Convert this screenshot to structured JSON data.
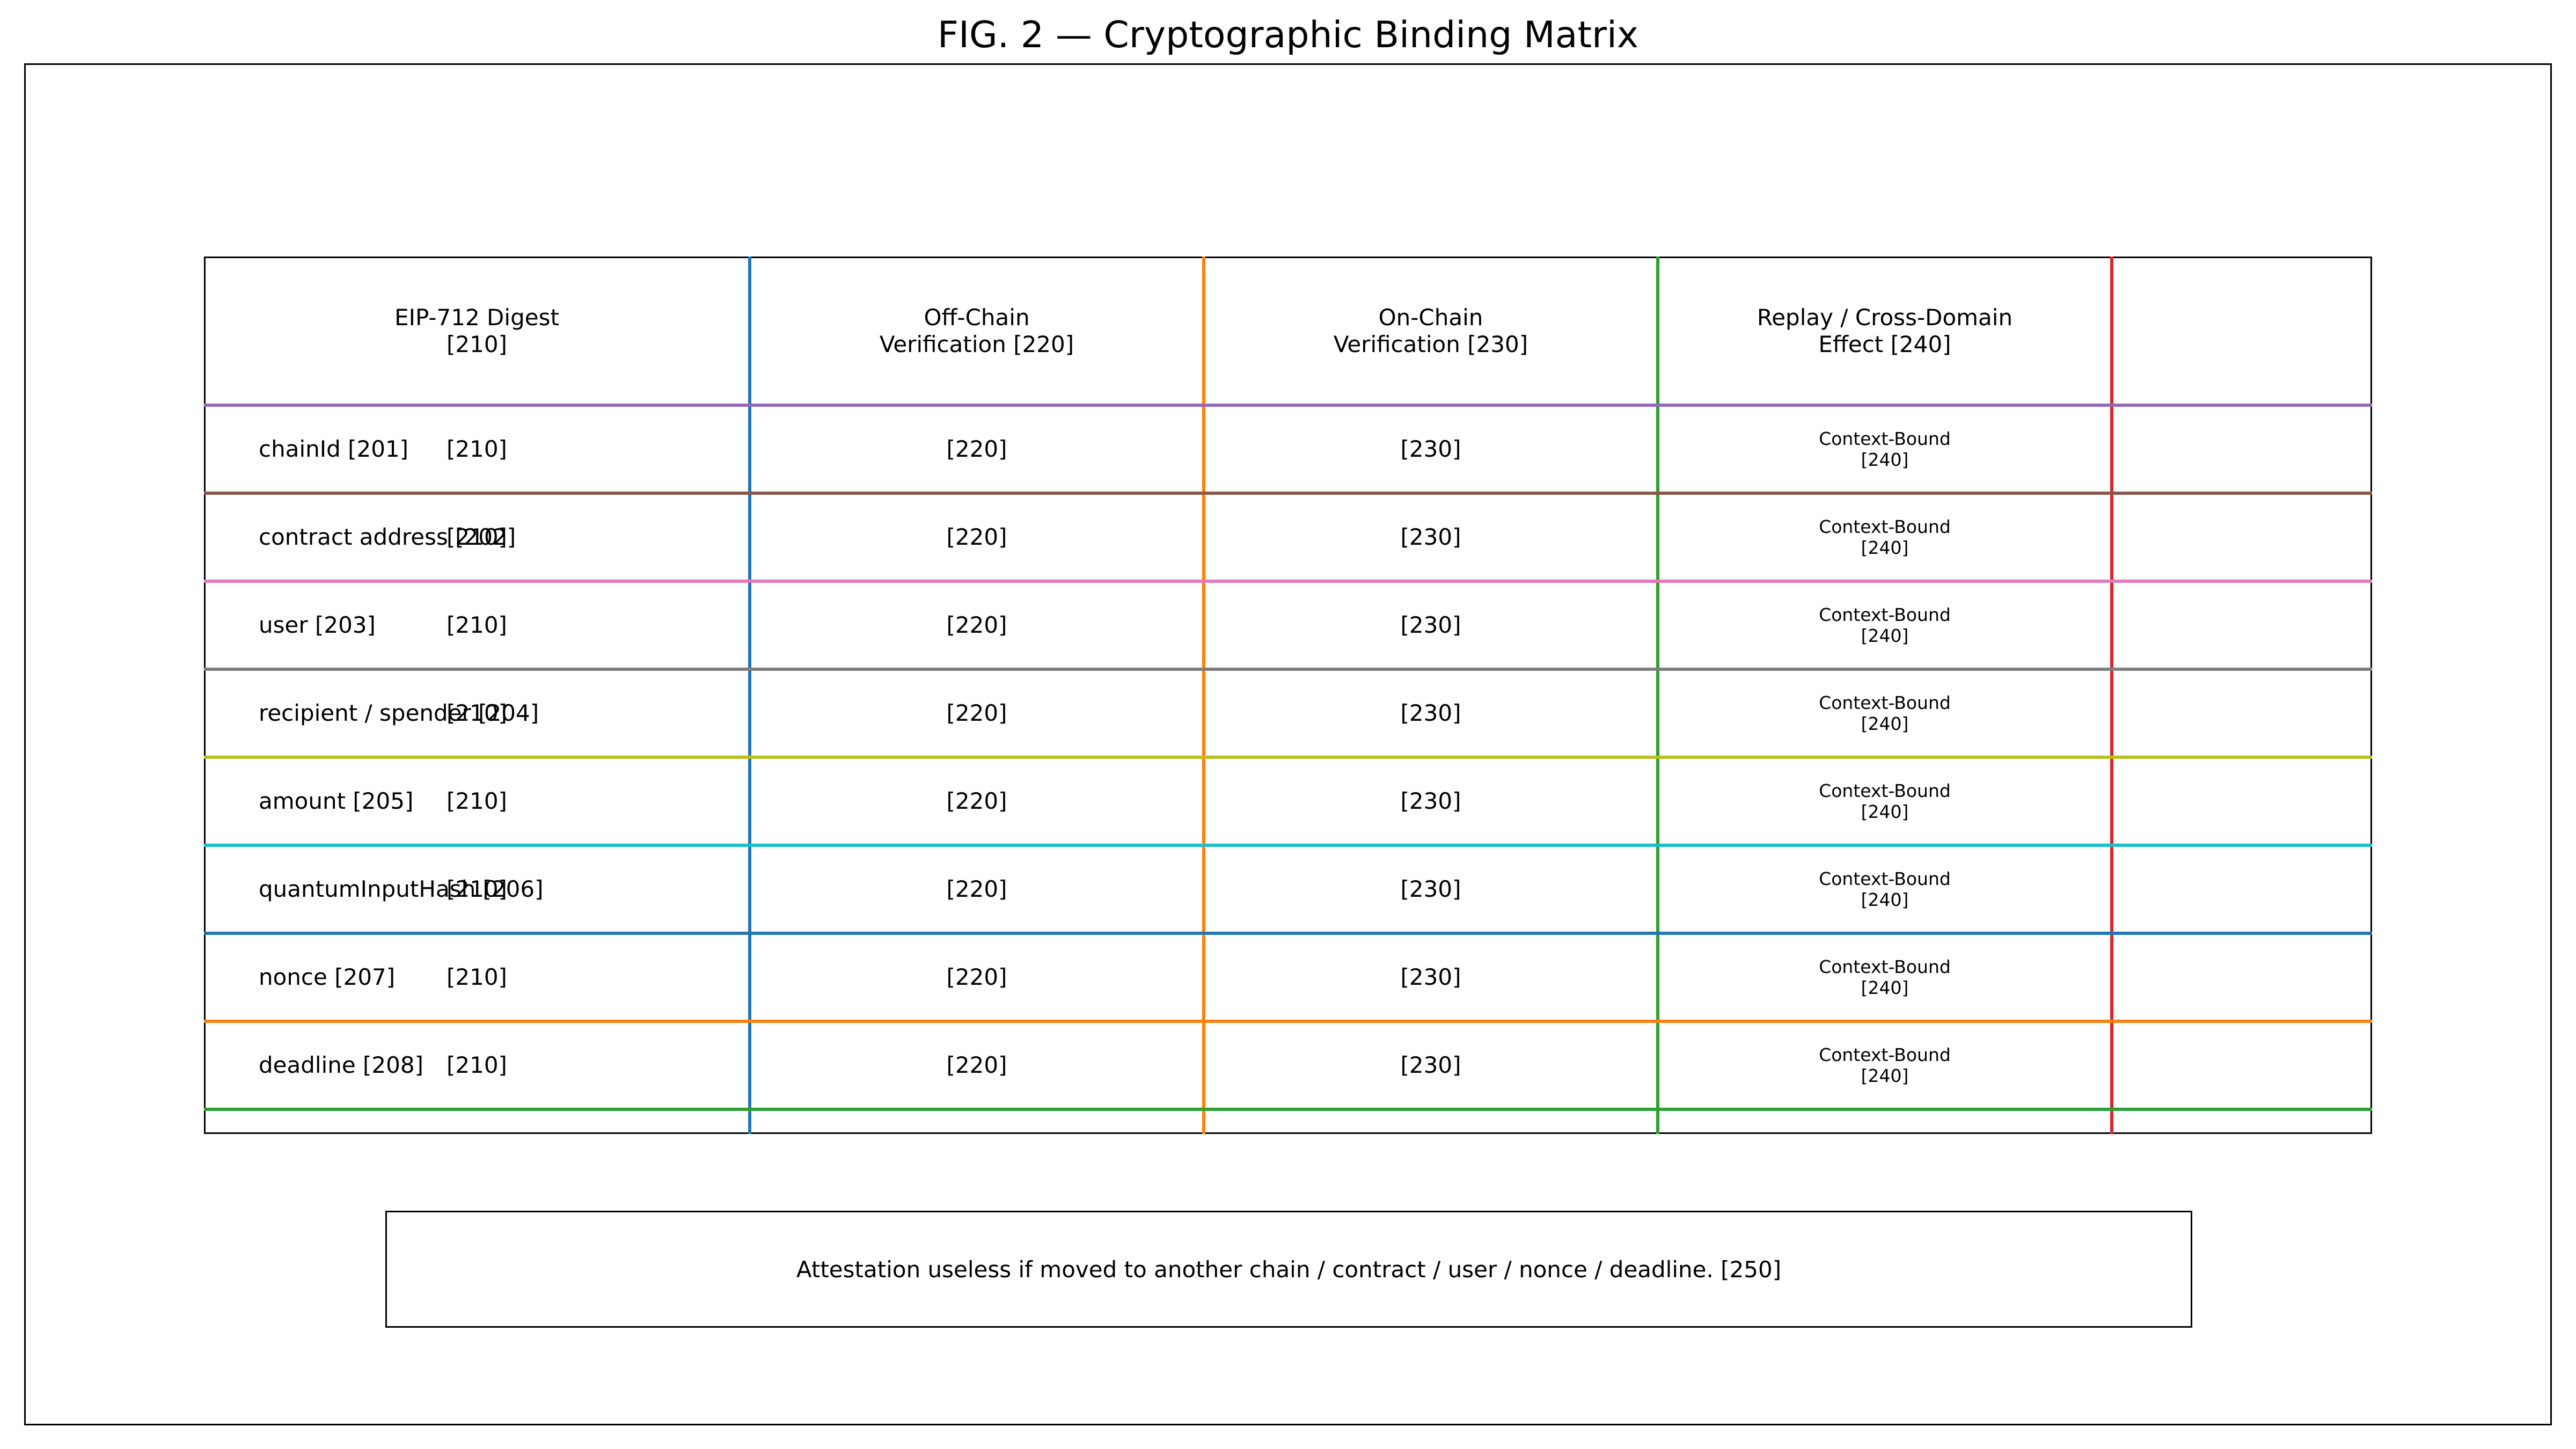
{
  "title": "FIG. 2 — Cryptographic Binding Matrix",
  "columns": [
    {
      "label": "EIP-712 Digest\n[210]",
      "color": "#1f77b4"
    },
    {
      "label": "Off-Chain\nVerification [220]",
      "color": "#ff7f0e"
    },
    {
      "label": "On-Chain\nVerification [230]",
      "color": "#2ca02c"
    },
    {
      "label": "Replay / Cross-Domain\nEffect [240]",
      "color": "#d62728"
    }
  ],
  "rows": [
    {
      "label": "chainId [201]",
      "color": "#9467bd"
    },
    {
      "label": "contract address [202]",
      "color": "#8c564b"
    },
    {
      "label": "user [203]",
      "color": "#e377c2"
    },
    {
      "label": "recipient / spender [204]",
      "color": "#7f7f7f"
    },
    {
      "label": "amount [205]",
      "color": "#bcbd22"
    },
    {
      "label": "quantumInputHash [206]",
      "color": "#17becf"
    },
    {
      "label": "nonce [207]",
      "color": "#1f77b4"
    },
    {
      "label": "deadline [208]",
      "color": "#ff7f0e"
    }
  ],
  "bottom_line_color": "#2ca02c",
  "cells": {
    "digest": "[210]",
    "offchain": "[220]",
    "onchain": "[230]",
    "effect": "Context-Bound\n[240]"
  },
  "note": "Attestation useless if moved to another chain / contract / user / nonce / deadline. [250]"
}
